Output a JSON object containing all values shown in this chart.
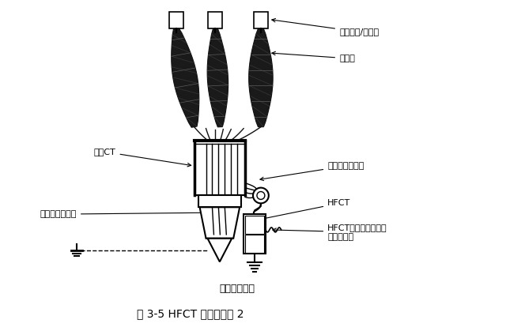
{
  "title": "图 3-5 HFCT 测量原理图 2",
  "ground_bus_label": "电缆接地母线",
  "background_color": "#ffffff",
  "line_color": "#000000",
  "labels": {
    "cable_inlet": "电缆进绑/馈绑端",
    "cable_head": "电缆头",
    "zero_ct": "零序CT",
    "conductor": "导线、绝缘层等",
    "cable_shield": "电缆屏蔽接地绑",
    "hfct": "HFCT",
    "hfct_coax_line1": "HFCT同轴电缆，连接",
    "hfct_coax_line2": "到监测装置",
    "ground_bus": "电缆接地母线"
  },
  "figsize": [
    6.4,
    4.19
  ],
  "dpi": 100
}
